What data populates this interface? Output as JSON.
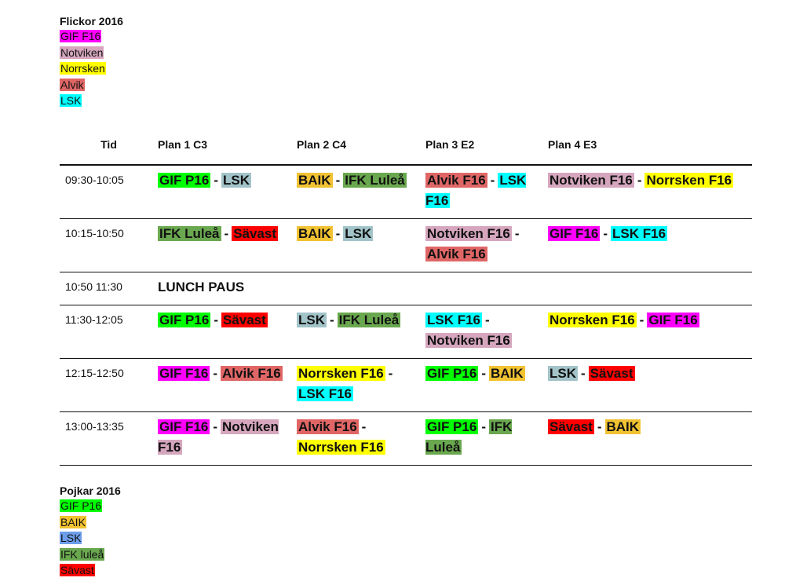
{
  "colors": {
    "gif_f16": "#ff00ff",
    "notviken": "#d5a6bd",
    "norrsken": "#ffff00",
    "alvik": "#e06666",
    "lsk_girls": "#00ffff",
    "gif_p16": "#00ff00",
    "baik": "#f1c232",
    "lsk_boys_legend": "#6d9eeb",
    "lsk_boys": "#a2c4c9",
    "ifk_lulea": "#6aa84f",
    "savast": "#ff0000"
  },
  "legend_girls": {
    "title": "Flickor 2016",
    "items": [
      {
        "label": "GIF F16",
        "color": "#ff00ff"
      },
      {
        "label": "Notviken",
        "color": "#d5a6bd"
      },
      {
        "label": "Norrsken",
        "color": "#ffff00"
      },
      {
        "label": "Alvik",
        "color": "#e06666"
      },
      {
        "label": "LSK",
        "color": "#00ffff"
      }
    ]
  },
  "legend_boys": {
    "title": "Pojkar 2016",
    "items": [
      {
        "label": "GIF P16",
        "color": "#00ff00"
      },
      {
        "label": "BAIK",
        "color": "#f1c232"
      },
      {
        "label": "LSK",
        "color": "#6d9eeb"
      },
      {
        "label": "IFK luleå",
        "color": "#6aa84f"
      },
      {
        "label": "Sävast",
        "color": "#ff0000"
      }
    ]
  },
  "schedule": {
    "headers": [
      "Tid",
      "Plan 1 C3",
      "Plan 2 C4",
      "Plan 3 E2",
      "Plan 4 E3"
    ],
    "separator": "-",
    "rows": [
      {
        "time": "09:30-10:05",
        "matches": [
          {
            "home": "GIF P16",
            "home_color": "#00ff00",
            "away": "LSK",
            "away_color": "#a2c4c9"
          },
          {
            "home": "BAIK",
            "home_color": "#f1c232",
            "away": "IFK Luleå",
            "away_color": "#6aa84f"
          },
          {
            "home": "Alvik F16",
            "home_color": "#e06666",
            "away": "LSK F16",
            "away_color": "#00ffff"
          },
          {
            "home": "Notviken F16",
            "home_color": "#d5a6bd",
            "away": "Norrsken F16",
            "away_color": "#ffff00"
          }
        ]
      },
      {
        "time": "10:15-10:50",
        "matches": [
          {
            "home": "IFK Luleå",
            "home_color": "#6aa84f",
            "away": "Sävast",
            "away_color": "#ff0000"
          },
          {
            "home": "BAIK",
            "home_color": "#f1c232",
            "away": "LSK",
            "away_color": "#a2c4c9"
          },
          {
            "home": "Notviken F16",
            "home_color": "#d5a6bd",
            "away": "Alvik F16",
            "away_color": "#e06666"
          },
          {
            "home": "GIF F16",
            "home_color": "#ff00ff",
            "away": "LSK F16",
            "away_color": "#00ffff"
          }
        ]
      },
      {
        "time": "10:50 11:30",
        "lunch": "LUNCH PAUS"
      },
      {
        "time": "11:30-12:05",
        "matches": [
          {
            "home": "GIF P16",
            "home_color": "#00ff00",
            "away": "Sävast",
            "away_color": "#ff0000"
          },
          {
            "home": "LSK",
            "home_color": "#a2c4c9",
            "away": "IFK Luleå",
            "away_color": "#6aa84f"
          },
          {
            "home": "LSK F16",
            "home_color": "#00ffff",
            "away": "Notviken F16",
            "away_color": "#d5a6bd"
          },
          {
            "home": "Norrsken F16",
            "home_color": "#ffff00",
            "away": "GIF F16",
            "away_color": "#ff00ff"
          }
        ]
      },
      {
        "time": "12:15-12:50",
        "matches": [
          {
            "home": "GIF F16",
            "home_color": "#ff00ff",
            "away": "Alvik F16",
            "away_color": "#e06666"
          },
          {
            "home": "Norrsken F16",
            "home_color": "#ffff00",
            "away": "LSK F16",
            "away_color": "#00ffff"
          },
          {
            "home": "GIF P16",
            "home_color": "#00ff00",
            "away": "BAIK",
            "away_color": "#f1c232"
          },
          {
            "home": "LSK",
            "home_color": "#a2c4c9",
            "away": "Sävast",
            "away_color": "#ff0000"
          }
        ]
      },
      {
        "time": "13:00-13:35",
        "matches": [
          {
            "home": "GIF F16",
            "home_color": "#ff00ff",
            "away": "Notviken F16",
            "away_color": "#d5a6bd"
          },
          {
            "home": "Alvik F16",
            "home_color": "#e06666",
            "away": "Norrsken F16",
            "away_color": "#ffff00"
          },
          {
            "home": "GIF P16",
            "home_color": "#00ff00",
            "away": "IFK Luleå",
            "away_color": "#6aa84f"
          },
          {
            "home": "Sävast",
            "home_color": "#ff0000",
            "away": "BAIK",
            "away_color": "#f1c232"
          }
        ]
      }
    ]
  }
}
